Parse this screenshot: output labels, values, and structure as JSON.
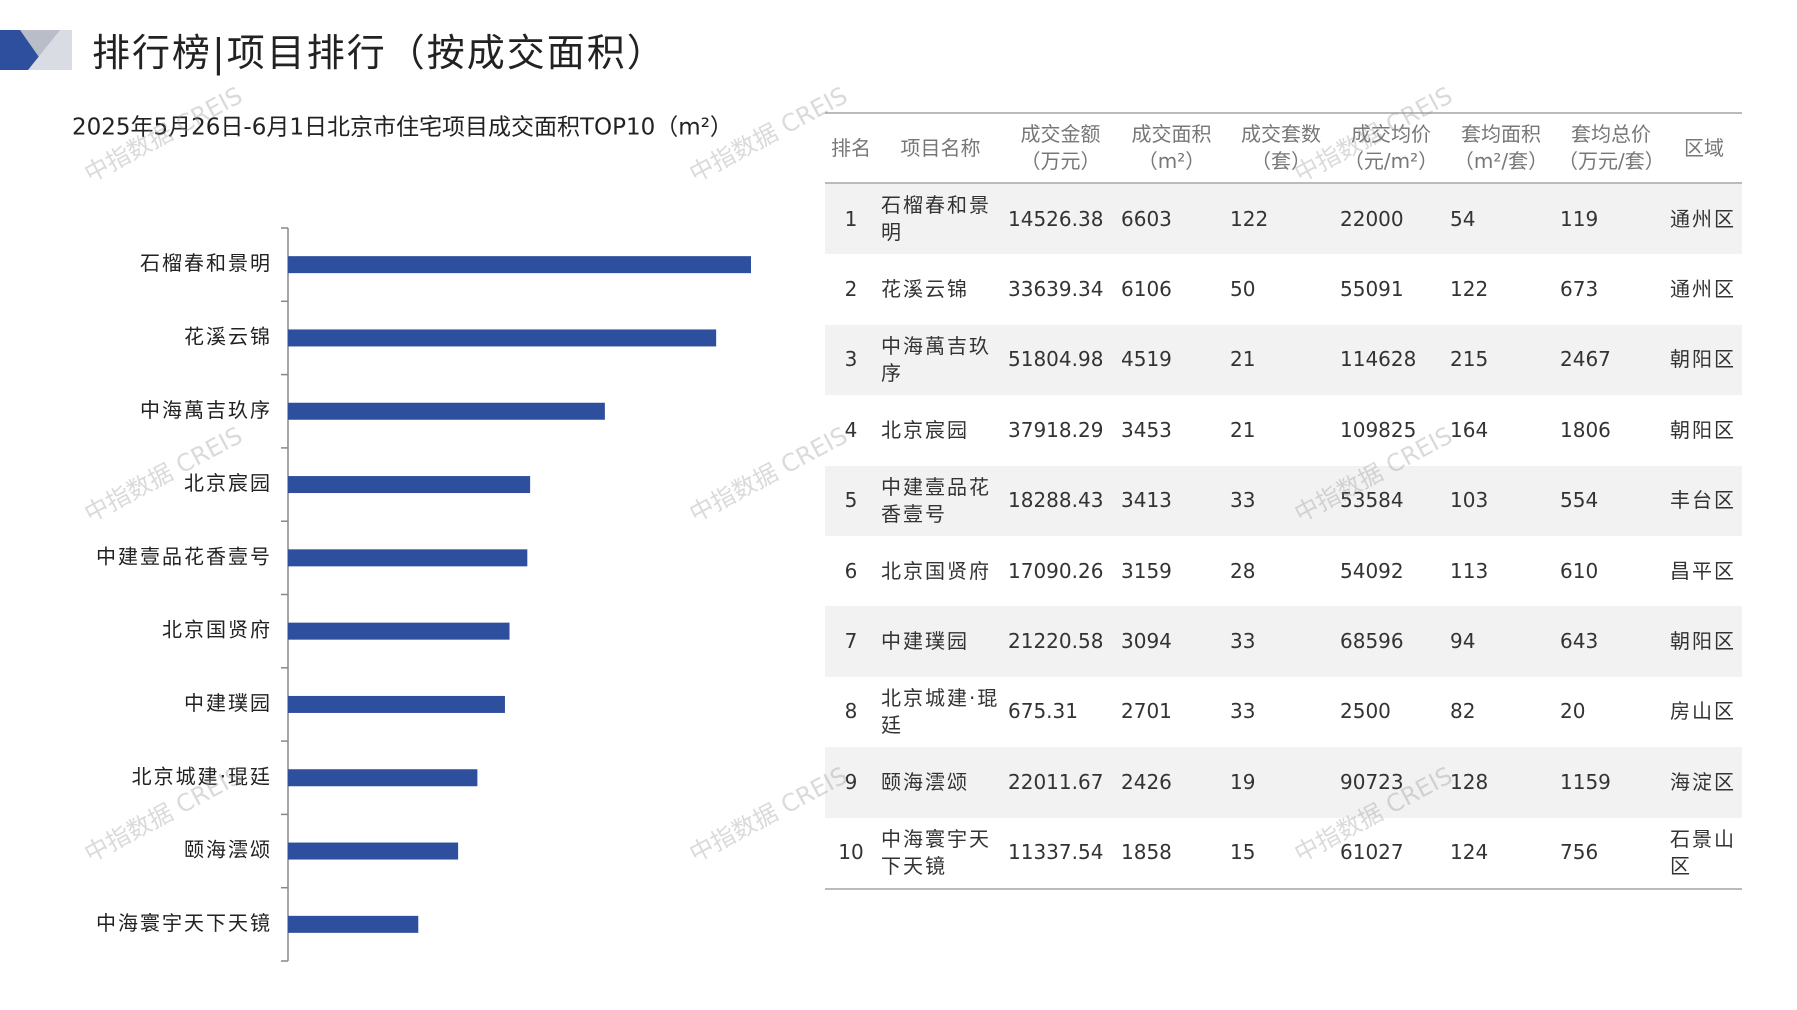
{
  "header": {
    "title": "排行榜|项目排行（按成交面积）"
  },
  "watermark": "中指数据 CREIS",
  "chart_data": {
    "type": "bar",
    "orientation": "horizontal",
    "title": "2025年5月26日-6月1日北京市住宅项目成交面积TOP10（m²）",
    "categories": [
      "石榴春和景明",
      "花溪云锦",
      "中海萬吉玖序",
      "北京宸园",
      "中建壹品花香壹号",
      "北京国贤府",
      "中建璞园",
      "北京城建·琨廷",
      "颐海澐颂",
      "中海寰宇天下天镜"
    ],
    "values": [
      6603,
      6106,
      4519,
      3453,
      3413,
      3159,
      3094,
      2701,
      2426,
      1858
    ],
    "color": "#2e4f9e"
  },
  "table": {
    "columns": [
      {
        "name": "排名"
      },
      {
        "name": "项目名称"
      },
      {
        "name": "成交金额",
        "unit": "（万元）"
      },
      {
        "name": "成交面积",
        "unit": "（m²）"
      },
      {
        "name": "成交套数",
        "unit": "（套）"
      },
      {
        "name": "成交均价",
        "unit": "（元/m²）"
      },
      {
        "name": "套均面积",
        "unit": "（m²/套）"
      },
      {
        "name": "套均总价",
        "unit": "（万元/套）"
      },
      {
        "name": "区域"
      }
    ],
    "rows": [
      [
        1,
        "石榴春和景明",
        14526.38,
        6603,
        122,
        22000,
        54,
        119,
        "通州区"
      ],
      [
        2,
        "花溪云锦",
        33639.34,
        6106,
        50,
        55091,
        122,
        673,
        "通州区"
      ],
      [
        3,
        "中海萬吉玖序",
        51804.98,
        4519,
        21,
        114628,
        215,
        2467,
        "朝阳区"
      ],
      [
        4,
        "北京宸园",
        37918.29,
        3453,
        21,
        109825,
        164,
        1806,
        "朝阳区"
      ],
      [
        5,
        "中建壹品花香壹号",
        18288.43,
        3413,
        33,
        53584,
        103,
        554,
        "丰台区"
      ],
      [
        6,
        "北京国贤府",
        17090.26,
        3159,
        28,
        54092,
        113,
        610,
        "昌平区"
      ],
      [
        7,
        "中建璞园",
        21220.58,
        3094,
        33,
        68596,
        94,
        643,
        "朝阳区"
      ],
      [
        8,
        "北京城建·琨廷",
        675.31,
        2701,
        33,
        2500,
        82,
        20,
        "房山区"
      ],
      [
        9,
        "颐海澐颂",
        22011.67,
        2426,
        19,
        90723,
        128,
        1159,
        "海淀区"
      ],
      [
        10,
        "中海寰宇天下天镜",
        11337.54,
        1858,
        15,
        61027,
        124,
        756,
        "石景山区"
      ]
    ]
  }
}
